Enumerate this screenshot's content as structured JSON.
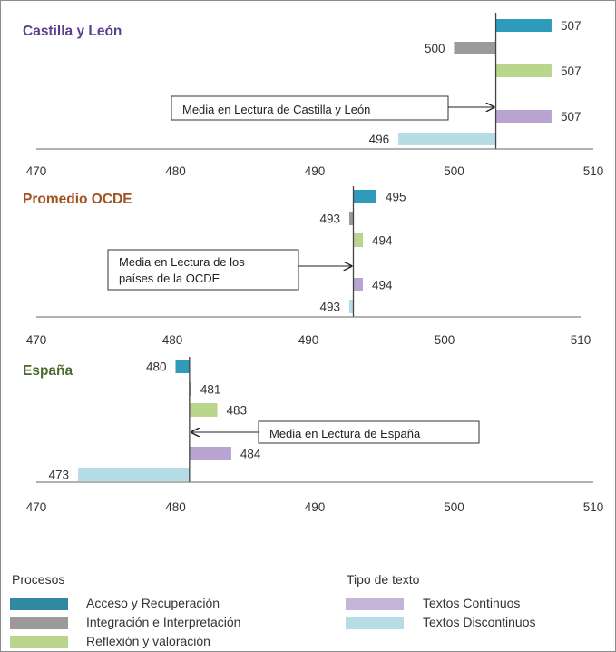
{
  "legend": {
    "group1_title": "Procesos",
    "group2_title": "Tipo de texto",
    "items": [
      {
        "label": "Acceso y Recuperación",
        "color": "#2e8aa0"
      },
      {
        "label": "Integración e Interpretación",
        "color": "#9a9a9a"
      },
      {
        "label": "Reflexión y valoración",
        "color": "#b9d68c"
      },
      {
        "label": "Textos Continuos",
        "color": "#c3b4d8"
      },
      {
        "label": "Textos Discontinuos",
        "color": "#b6dde6"
      }
    ]
  },
  "chart_data": [
    {
      "type": "bar",
      "orientation": "horizontal",
      "title": "Castilla y León",
      "title_color": "#5b3f8c",
      "categories": [
        "Acceso y Recuperación",
        "Integración e Interpretación",
        "Reflexión y valoración",
        "Textos Continuos",
        "Textos Discontinuos"
      ],
      "values": [
        507,
        500,
        507,
        507,
        496
      ],
      "colors": [
        "#2e9bbb",
        "#9a9a9a",
        "#b9d68c",
        "#b9a3d0",
        "#b6dde6"
      ],
      "baseline": 503,
      "xlim": [
        470,
        510
      ],
      "xticks": [
        470,
        480,
        490,
        500,
        510
      ],
      "annotation": {
        "lines": [
          "Media en Lectura de Castilla  y León"
        ]
      }
    },
    {
      "type": "bar",
      "orientation": "horizontal",
      "title": "Promedio OCDE",
      "title_color": "#a0521e",
      "categories": [
        "Acceso y Recuperación",
        "Integración e Interpretación",
        "Reflexión y valoración",
        "Textos Continuos",
        "Textos Discontinuos"
      ],
      "values": [
        495,
        493,
        494,
        494,
        493
      ],
      "colors": [
        "#2e9bbb",
        "#9a9a9a",
        "#b9d68c",
        "#b9a3d0",
        "#b6dde6"
      ],
      "baseline": 493.3,
      "xlim": [
        470,
        510
      ],
      "xticks": [
        470,
        480,
        490,
        500,
        510
      ],
      "annotation": {
        "lines": [
          "Media en Lectura de los",
          "países de la OCDE"
        ]
      }
    },
    {
      "type": "bar",
      "orientation": "horizontal",
      "title": "España",
      "title_color": "#4d6b2e",
      "categories": [
        "Acceso y Recuperación",
        "Integración e Interpretación",
        "Reflexión y valoración",
        "Textos Continuos",
        "Textos Discontinuos"
      ],
      "values": [
        480,
        481,
        483,
        484,
        473
      ],
      "colors": [
        "#2e9bbb",
        "#9a9a9a",
        "#b9d68c",
        "#b9a3d0",
        "#b6dde6"
      ],
      "baseline": 481,
      "xlim": [
        470,
        510
      ],
      "xticks": [
        470,
        480,
        490,
        500,
        510
      ],
      "annotation": {
        "lines": [
          "Media en Lectura de España"
        ]
      }
    }
  ]
}
